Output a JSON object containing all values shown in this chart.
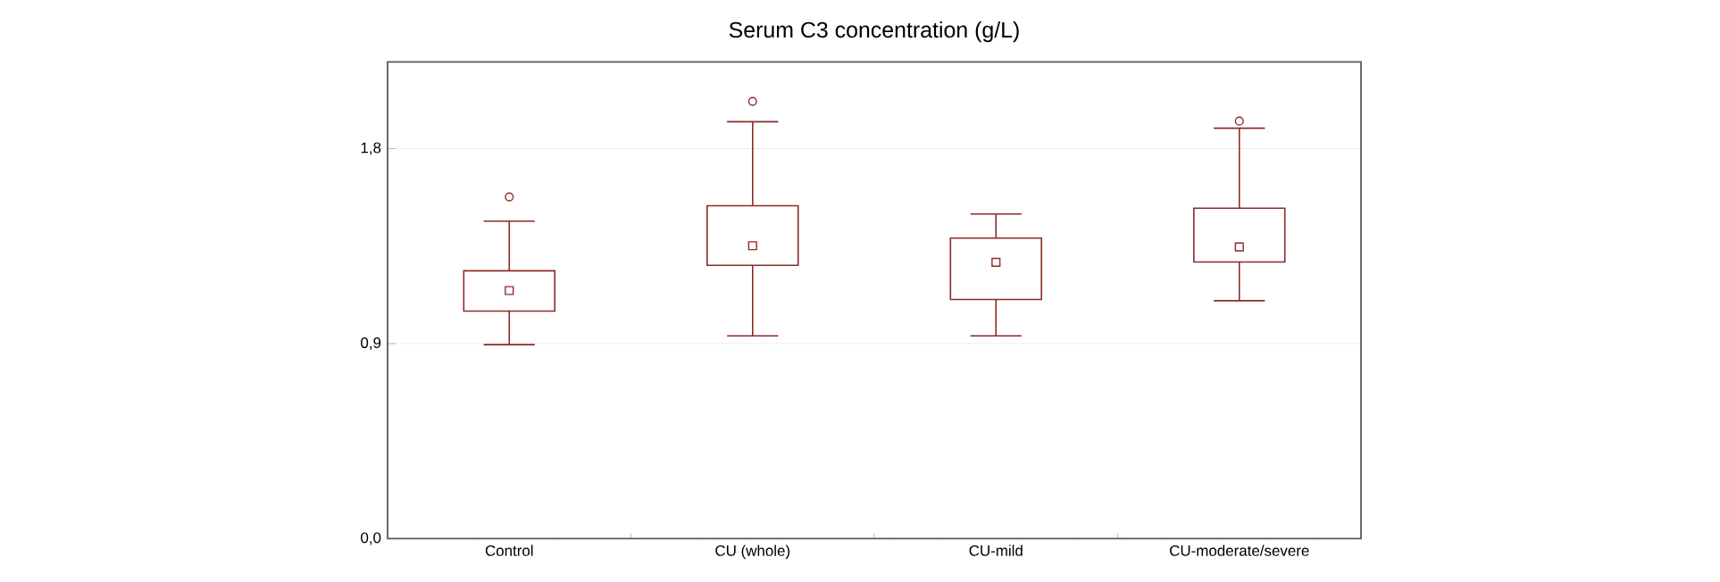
{
  "chart_data": {
    "type": "box",
    "title": "Serum C3 concentration (g/L)",
    "categories": [
      "Control",
      "CU (whole)",
      "CU-mild",
      "CU-moderate/severe"
    ],
    "color": "#8b2a2a",
    "boxes": [
      {
        "low": 0.895,
        "q1": 1.05,
        "median": 1.145,
        "q3": 1.236,
        "high": 1.465,
        "outliers": [
          1.577
        ]
      },
      {
        "low": 0.936,
        "q1": 1.261,
        "median": 1.352,
        "q3": 1.536,
        "high": 1.924,
        "outliers": [
          2.018
        ]
      },
      {
        "low": 0.936,
        "q1": 1.104,
        "median": 1.275,
        "q3": 1.387,
        "high": 1.498
      },
      {
        "low": 1.098,
        "q1": 1.277,
        "median": 1.346,
        "q3": 1.525,
        "high": 1.894,
        "outliers": [
          1.927
        ]
      }
    ],
    "ylim": [
      0,
      2.2
    ],
    "yticks": [
      {
        "value": 0,
        "label": "0,0"
      },
      {
        "value": 0.9,
        "label": "0,9"
      },
      {
        "value": 1.8,
        "label": "1,8"
      }
    ],
    "grid": "y"
  }
}
